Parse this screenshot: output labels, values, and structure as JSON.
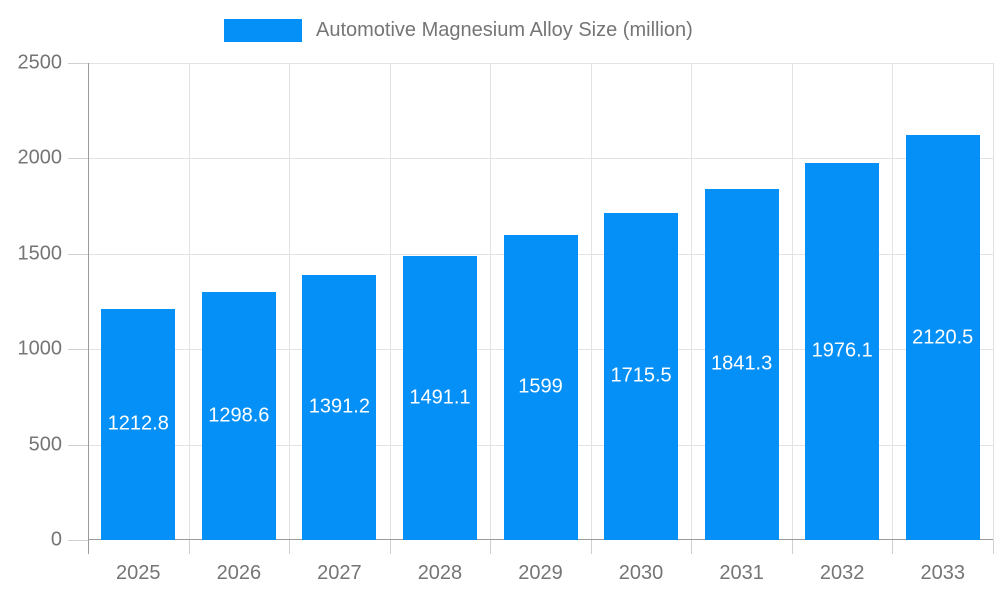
{
  "chart_data": {
    "type": "bar",
    "title": "Automotive Magnesium Alloy Size (million)",
    "legend_position": "top",
    "categories": [
      "2025",
      "2026",
      "2027",
      "2028",
      "2029",
      "2030",
      "2031",
      "2032",
      "2033"
    ],
    "values": [
      1212.8,
      1298.6,
      1391.2,
      1491.1,
      1599,
      1715.5,
      1841.3,
      1976.1,
      2120.5
    ],
    "value_labels": [
      "1212.8",
      "1298.6",
      "1391.2",
      "1491.1",
      "1599",
      "1715.5",
      "1841.3",
      "1976.1",
      "2120.5"
    ],
    "xlabel": "",
    "ylabel": "",
    "ylim": [
      0,
      2500
    ],
    "yticks": [
      0,
      500,
      1000,
      1500,
      2000,
      2500
    ],
    "grid": true,
    "colors": {
      "bar": "#0590f8",
      "value_label": "#ffffff",
      "axis_text": "#757575",
      "grid_line": "#e3e3e3",
      "axis_line": "#9a9a9a",
      "tick_line": "#cfcfcf",
      "background": "#ffffff"
    }
  }
}
